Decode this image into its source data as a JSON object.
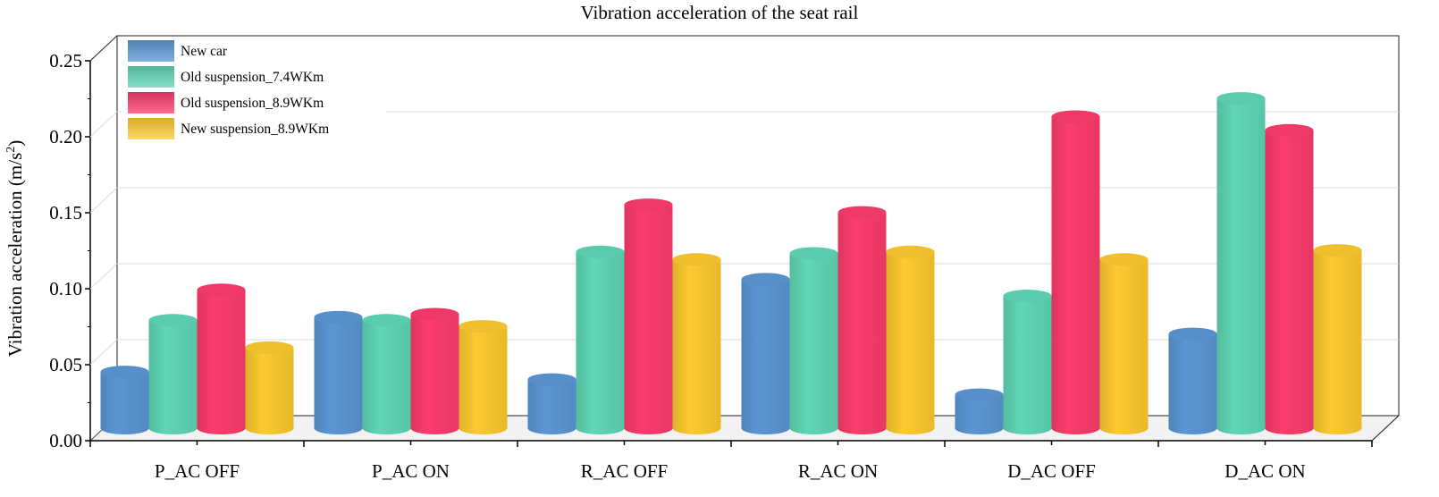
{
  "chart_data": {
    "type": "bar",
    "title": "Vibration acceleration of the seat rail",
    "ylabel": "Vibration acceleration (m/s",
    "ylabel_sup": "2",
    "ylabel_close": ")",
    "xlabel": "",
    "ylim": [
      0,
      0.25
    ],
    "yticks": [
      "0.00",
      "0.05",
      "0.10",
      "0.15",
      "0.20",
      "0.25"
    ],
    "categories": [
      "P_AC OFF",
      "P_AC ON",
      "R_AC OFF",
      "R_AC ON",
      "D_AC OFF",
      "D_AC ON"
    ],
    "legend_position": "top-left",
    "grid": true,
    "series": [
      {
        "name": "New car",
        "color": "#5b96d4",
        "values": [
          0.037,
          0.073,
          0.032,
          0.098,
          0.022,
          0.062
        ]
      },
      {
        "name": "Old suspension_7.4WKm",
        "color": "#5fd6b5",
        "values": [
          0.071,
          0.071,
          0.116,
          0.115,
          0.087,
          0.217
        ]
      },
      {
        "name": "Old suspension_8.9WKm",
        "color": "#fb3c6c",
        "values": [
          0.091,
          0.075,
          0.147,
          0.142,
          0.205,
          0.196
        ]
      },
      {
        "name": "New suspension_8.9WKm",
        "color": "#fcc930",
        "values": [
          0.053,
          0.067,
          0.111,
          0.116,
          0.111,
          0.117
        ]
      }
    ]
  }
}
